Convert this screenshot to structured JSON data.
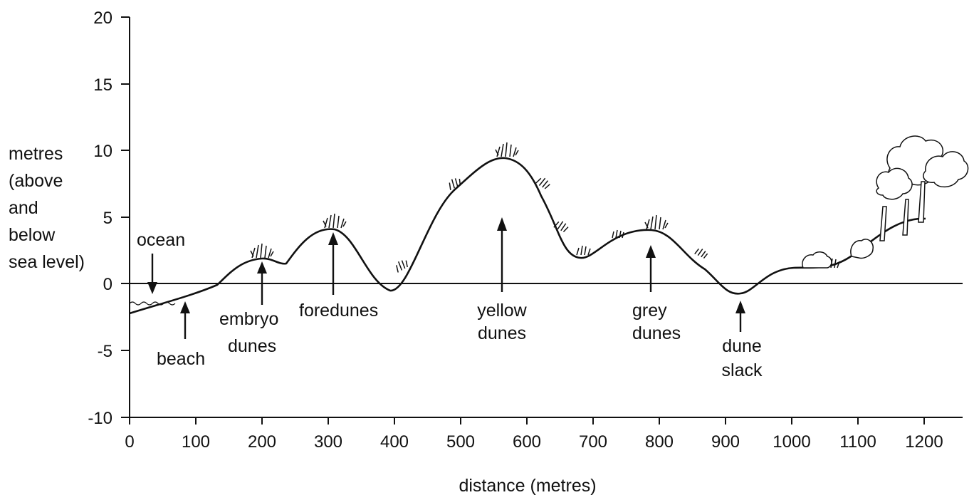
{
  "diagram": {
    "y_axis_label_lines": [
      "metres",
      "(above",
      "and",
      "below",
      "sea level)"
    ],
    "x_axis_label": "distance (metres)",
    "y_ticks": [
      "20",
      "15",
      "10",
      "5",
      "0",
      "-5",
      "-10"
    ],
    "x_ticks": [
      "0",
      "100",
      "200",
      "300",
      "400",
      "500",
      "600",
      "700",
      "800",
      "900",
      "1000",
      "1100",
      "1200"
    ],
    "annotations": {
      "ocean": "ocean",
      "beach": "beach",
      "embryo_dunes": [
        "embryo",
        "dunes"
      ],
      "foredunes": "foredunes",
      "yellow_dunes": [
        "yellow",
        "dunes"
      ],
      "grey_dunes": [
        "grey",
        "dunes"
      ],
      "dune_slack": [
        "dune",
        "slack"
      ]
    },
    "icons": [
      "dune-grass-icon",
      "shrub-icon",
      "tree-icon",
      "water-waves-icon"
    ]
  }
}
